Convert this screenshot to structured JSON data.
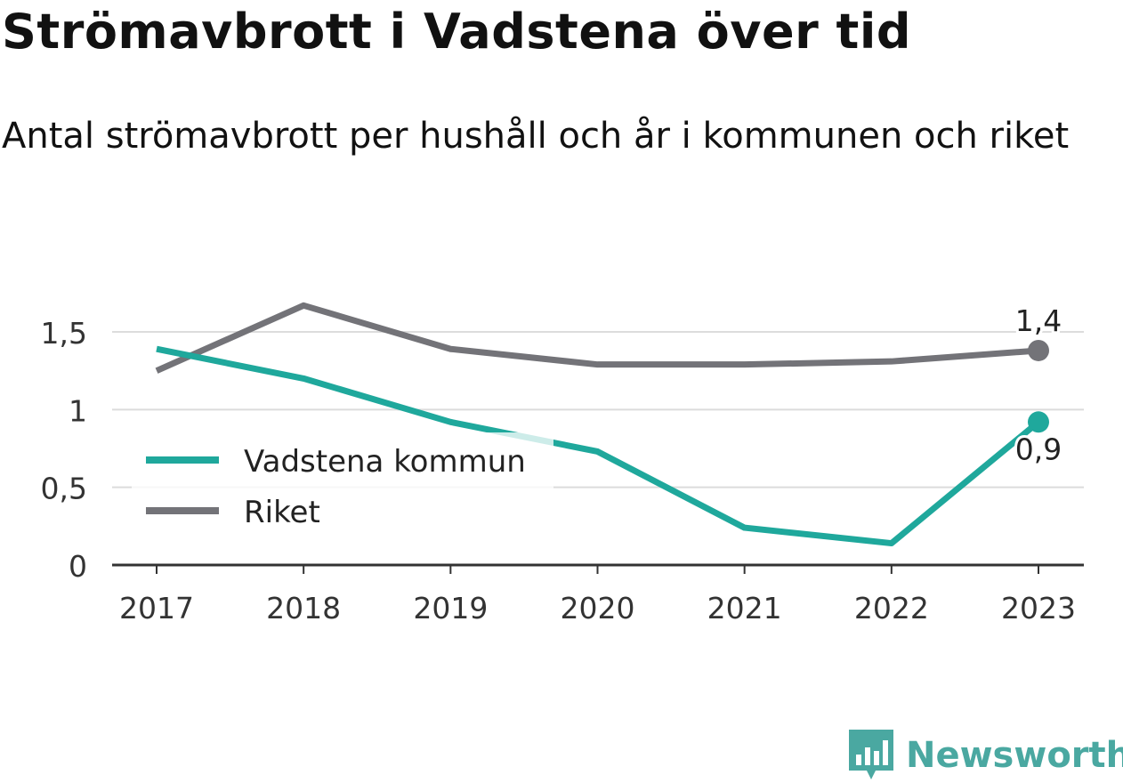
{
  "chart_data": {
    "type": "line",
    "title": "Strömavbrott i Vadstena över tid",
    "subtitle": "Antal strömavbrott per hushåll och år i kommunen och riket",
    "categories": [
      "2017",
      "2018",
      "2019",
      "2020",
      "2021",
      "2022",
      "2023"
    ],
    "y_ticks": [
      0,
      0.5,
      1,
      1.5
    ],
    "y_tick_labels": [
      "0",
      "0,5",
      "1",
      "1,5"
    ],
    "ylim": [
      0,
      1.75
    ],
    "grid": true,
    "legend_position": "left-center",
    "series": [
      {
        "name": "Vadstena kommun",
        "color": "#1fa89c",
        "values": [
          1.39,
          1.2,
          0.92,
          0.73,
          0.24,
          0.14,
          0.92
        ],
        "end_label": "0,9"
      },
      {
        "name": "Riket",
        "color": "#737378",
        "values": [
          1.25,
          1.67,
          1.39,
          1.29,
          1.29,
          1.31,
          1.38
        ],
        "end_label": "1,4"
      }
    ]
  },
  "brand": {
    "name": "Newsworthy",
    "icon": "newsworthy-logo-icon",
    "color": "#4aa8a1"
  }
}
